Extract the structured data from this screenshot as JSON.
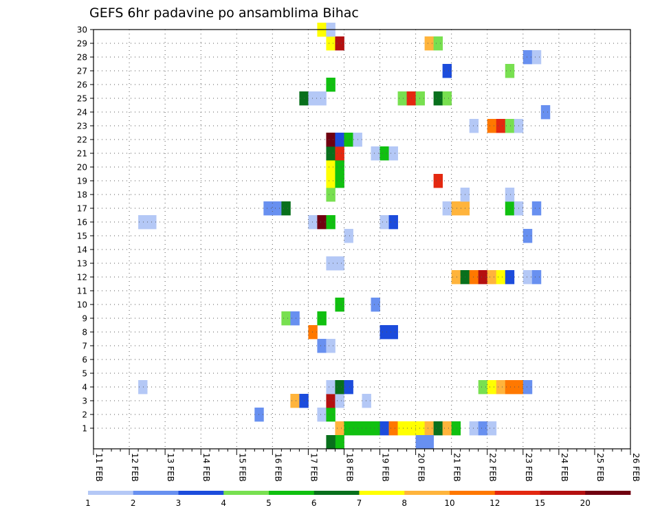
{
  "chart_data": {
    "type": "heatmap",
    "title": "GEFS 6hr padavine po ansamblima Bihac",
    "x_labels": [
      "11 FEB",
      "12 FEB",
      "13 FEB",
      "14 FEB",
      "15 FEB",
      "16 FEB",
      "17 FEB",
      "18 FEB",
      "19 FEB",
      "20 FEB",
      "21 FEB",
      "22 FEB",
      "23 FEB",
      "24 FEB",
      "25 FEB",
      "26 FEB"
    ],
    "y_labels": [
      "1",
      "2",
      "3",
      "4",
      "5",
      "6",
      "7",
      "8",
      "9",
      "10",
      "11",
      "12",
      "13",
      "14",
      "15",
      "16",
      "17",
      "18",
      "19",
      "20",
      "21",
      "22",
      "23",
      "24",
      "25",
      "26",
      "27",
      "28",
      "29",
      "30"
    ],
    "grid": true,
    "colorbar": {
      "labels": [
        "1",
        "2",
        "3",
        "4",
        "5",
        "6",
        "7",
        "8",
        "10",
        "12",
        "15",
        "20"
      ],
      "colors": [
        "#b4c8f6",
        "#6890f0",
        "#1c4cdc",
        "#78e050",
        "#10c010",
        "#08701c",
        "#ffff00",
        "#ffb43c",
        "#ff7800",
        "#e42810",
        "#b41010",
        "#700010"
      ]
    },
    "cells_note": "cells are [member, 6hr step from 11 FEB 00Z, precipitation class 1-12]",
    "cells": [
      [
        1,
        27,
        8
      ],
      [
        1,
        28,
        5
      ],
      [
        1,
        29,
        5
      ],
      [
        1,
        30,
        5
      ],
      [
        1,
        31,
        5
      ],
      [
        1,
        32,
        3
      ],
      [
        1,
        33,
        9
      ],
      [
        1,
        34,
        7
      ],
      [
        1,
        35,
        7
      ],
      [
        1,
        36,
        7
      ],
      [
        1,
        37,
        8
      ],
      [
        1,
        38,
        6
      ],
      [
        1,
        39,
        8
      ],
      [
        1,
        40,
        5
      ],
      [
        1,
        42,
        1
      ],
      [
        1,
        43,
        2
      ],
      [
        1,
        44,
        1
      ],
      [
        0,
        36,
        2
      ],
      [
        0,
        37,
        2
      ],
      [
        0,
        27,
        5
      ],
      [
        0,
        26,
        6
      ],
      [
        2,
        18,
        2
      ],
      [
        2,
        25,
        1
      ],
      [
        2,
        26,
        5
      ],
      [
        3,
        22,
        8
      ],
      [
        3,
        23,
        3
      ],
      [
        3,
        26,
        11
      ],
      [
        3,
        27,
        1
      ],
      [
        3,
        30,
        1
      ],
      [
        4,
        5,
        1
      ],
      [
        4,
        26,
        1
      ],
      [
        4,
        27,
        6
      ],
      [
        4,
        28,
        3
      ],
      [
        4,
        43,
        4
      ],
      [
        4,
        44,
        7
      ],
      [
        4,
        45,
        8
      ],
      [
        4,
        46,
        9
      ],
      [
        4,
        47,
        9
      ],
      [
        4,
        48,
        2
      ],
      [
        7,
        25,
        2
      ],
      [
        7,
        26,
        1
      ],
      [
        8,
        24,
        9
      ],
      [
        8,
        32,
        3
      ],
      [
        8,
        33,
        3
      ],
      [
        9,
        21,
        4
      ],
      [
        9,
        22,
        2
      ],
      [
        9,
        25,
        5
      ],
      [
        10,
        27,
        5
      ],
      [
        10,
        31,
        2
      ],
      [
        12,
        40,
        8
      ],
      [
        12,
        41,
        6
      ],
      [
        12,
        42,
        9
      ],
      [
        12,
        43,
        11
      ],
      [
        12,
        44,
        8
      ],
      [
        12,
        45,
        7
      ],
      [
        12,
        46,
        3
      ],
      [
        12,
        48,
        1
      ],
      [
        12,
        49,
        2
      ],
      [
        13,
        26,
        1
      ],
      [
        13,
        27,
        1
      ],
      [
        15,
        28,
        1
      ],
      [
        15,
        48,
        2
      ],
      [
        16,
        5,
        1
      ],
      [
        16,
        6,
        1
      ],
      [
        16,
        24,
        1
      ],
      [
        16,
        25,
        12
      ],
      [
        16,
        26,
        5
      ],
      [
        16,
        32,
        1
      ],
      [
        16,
        33,
        3
      ],
      [
        17,
        19,
        2
      ],
      [
        17,
        20,
        2
      ],
      [
        17,
        21,
        6
      ],
      [
        17,
        39,
        1
      ],
      [
        17,
        40,
        8
      ],
      [
        17,
        41,
        8
      ],
      [
        17,
        46,
        5
      ],
      [
        17,
        47,
        1
      ],
      [
        17,
        49,
        2
      ],
      [
        18,
        26,
        4
      ],
      [
        18,
        41,
        1
      ],
      [
        18,
        46,
        1
      ],
      [
        19,
        26,
        7
      ],
      [
        19,
        27,
        5
      ],
      [
        19,
        38,
        10
      ],
      [
        20,
        26,
        7
      ],
      [
        20,
        27,
        5
      ],
      [
        21,
        26,
        6
      ],
      [
        21,
        27,
        10
      ],
      [
        21,
        31,
        1
      ],
      [
        21,
        32,
        5
      ],
      [
        21,
        33,
        1
      ],
      [
        22,
        26,
        12
      ],
      [
        22,
        27,
        3
      ],
      [
        22,
        28,
        5
      ],
      [
        22,
        29,
        1
      ],
      [
        23,
        42,
        1
      ],
      [
        23,
        44,
        9
      ],
      [
        23,
        45,
        10
      ],
      [
        23,
        46,
        4
      ],
      [
        23,
        47,
        1
      ],
      [
        24,
        50,
        2
      ],
      [
        25,
        23,
        6
      ],
      [
        25,
        24,
        1
      ],
      [
        25,
        25,
        1
      ],
      [
        25,
        34,
        4
      ],
      [
        25,
        35,
        10
      ],
      [
        25,
        36,
        4
      ],
      [
        25,
        38,
        6
      ],
      [
        25,
        39,
        4
      ],
      [
        26,
        26,
        5
      ],
      [
        27,
        39,
        3
      ],
      [
        27,
        46,
        4
      ],
      [
        28,
        48,
        2
      ],
      [
        28,
        49,
        1
      ],
      [
        29,
        26,
        7
      ],
      [
        29,
        27,
        11
      ],
      [
        29,
        37,
        8
      ],
      [
        29,
        38,
        4
      ],
      [
        30,
        25,
        7
      ],
      [
        30,
        26,
        1
      ]
    ]
  }
}
